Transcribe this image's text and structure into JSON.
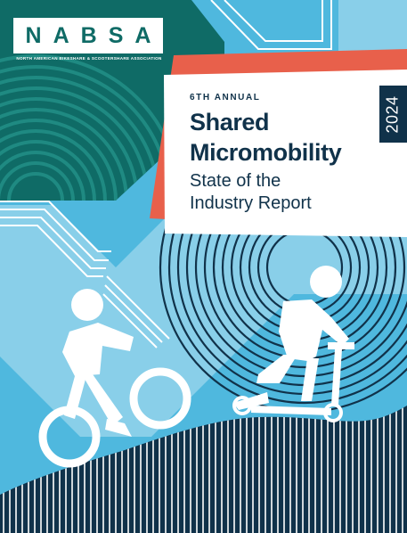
{
  "logo": {
    "name": "NABSA",
    "tagline": "NORTH AMERICAN BIKESHARE & SCOOTERSHARE ASSOCIATION"
  },
  "title": {
    "edition": "6TH ANNUAL",
    "line1": "Shared",
    "line2": "Micromobility",
    "subtitle_line1": "State of the",
    "subtitle_line2": "Industry Report",
    "year": "2024"
  },
  "colors": {
    "sky_blue": "#4fb8de",
    "light_blue": "#a9dcee",
    "teal": "#0f6b66",
    "navy": "#10324a",
    "coral": "#e8604b",
    "white": "#ffffff"
  },
  "illustration": [
    "bicyclist-figure",
    "scooter-rider-figure",
    "concentric-rings",
    "striped-hill"
  ]
}
